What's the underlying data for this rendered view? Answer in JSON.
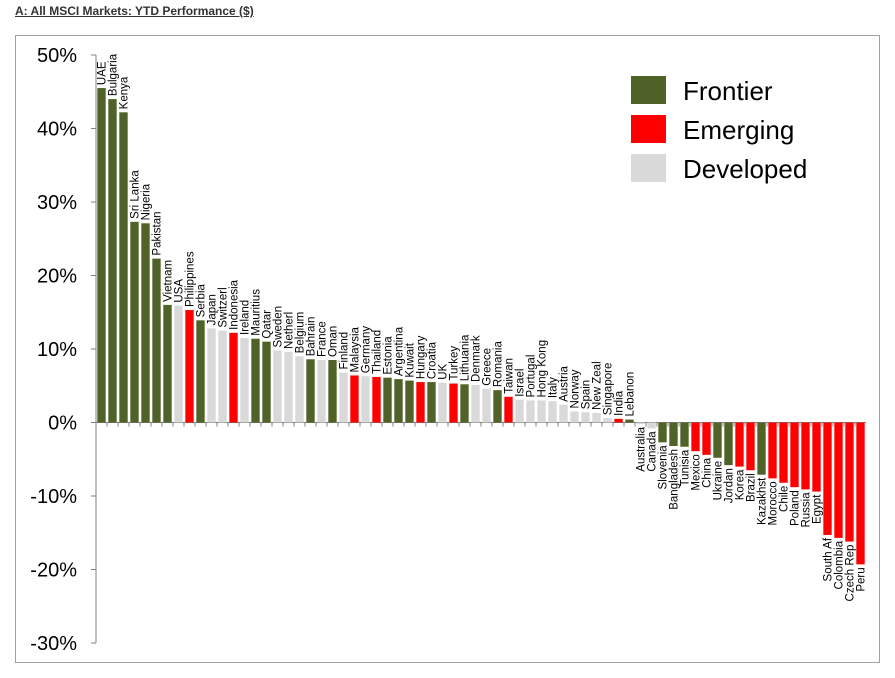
{
  "panel_title": "A: All MSCI Markets: YTD Performance ($)",
  "chart_data": {
    "type": "bar",
    "title": "",
    "xlabel": "",
    "ylabel": "",
    "ylim": [
      -30,
      50
    ],
    "yticks": [
      50,
      40,
      30,
      20,
      10,
      0,
      -10,
      -20,
      -30
    ],
    "ytick_labels": [
      "50%",
      "40%",
      "30%",
      "20%",
      "10%",
      "0%",
      "-10%",
      "-20%",
      "-30%"
    ],
    "legend": {
      "position": "top-right",
      "entries": [
        {
          "name": "Frontier",
          "color": "#4f6228"
        },
        {
          "name": "Emerging",
          "color": "#ff0000"
        },
        {
          "name": "Developed",
          "color": "#d9d9d9"
        }
      ]
    },
    "categories": [
      "UAE",
      "Bulgaria",
      "Kenya",
      "Sri Lanka",
      "Nigeria",
      "Pakistan",
      "Vietnam",
      "USA",
      "Philippines",
      "Serbia",
      "Japan",
      "Switzerl",
      "Indonesia",
      "Ireland",
      "Mauritius",
      "Qatar",
      "Sweden",
      "Netherl",
      "Belgium",
      "Bahrain",
      "France",
      "Oman",
      "Finland",
      "Malaysia",
      "Germany",
      "Thailand",
      "Estonia",
      "Argentina",
      "Kuwait",
      "Hungary",
      "Croatia",
      "UK",
      "Turkey",
      "Lithuania",
      "Denmark",
      "Greece",
      "Romania",
      "Taiwan",
      "Israel",
      "Portugal",
      "Hong Kong",
      "Italy",
      "Austria",
      "Norway",
      "Spain",
      "New Zeal",
      "Singapore",
      "India",
      "Lebanon",
      "Australia",
      "Canada",
      "Slovenia",
      "Bangladesh",
      "Tunisia",
      "Mexico",
      "China",
      "Ukraine",
      "Jordan",
      "Korea",
      "Brazil",
      "Kazakhst",
      "Morocco",
      "Chile",
      "Poland",
      "Russia",
      "Egypt",
      "South Af",
      "Colombia",
      "Czech Rep",
      "Peru"
    ],
    "values": [
      45.5,
      44,
      42.2,
      27.3,
      27.1,
      22.3,
      16,
      15.9,
      15.3,
      13.9,
      12.8,
      12.5,
      12.2,
      11.5,
      11.4,
      11,
      9.8,
      9.6,
      9,
      8.6,
      8.5,
      8.5,
      6.8,
      6.4,
      6.3,
      6.2,
      6.1,
      5.9,
      5.7,
      5.5,
      5.5,
      5.4,
      5.3,
      5.2,
      5.1,
      4.6,
      4.4,
      3.5,
      3.1,
      3,
      3,
      2.9,
      2.4,
      1.5,
      1.4,
      1.3,
      0.6,
      0.5,
      0.4,
      -0.2,
      -0.8,
      -2.7,
      -3.2,
      -3.3,
      -3.9,
      -4.4,
      -4.8,
      -5.8,
      -6,
      -6.5,
      -7.1,
      -7.6,
      -8.2,
      -8.8,
      -9.1,
      -9.4,
      -15.3,
      -15.7,
      -16.2,
      -19.3
    ],
    "groups": [
      "Frontier",
      "Frontier",
      "Frontier",
      "Frontier",
      "Frontier",
      "Frontier",
      "Frontier",
      "Developed",
      "Emerging",
      "Frontier",
      "Developed",
      "Developed",
      "Emerging",
      "Developed",
      "Frontier",
      "Frontier",
      "Developed",
      "Developed",
      "Developed",
      "Frontier",
      "Developed",
      "Frontier",
      "Developed",
      "Emerging",
      "Developed",
      "Emerging",
      "Frontier",
      "Frontier",
      "Frontier",
      "Emerging",
      "Frontier",
      "Developed",
      "Emerging",
      "Frontier",
      "Developed",
      "Developed",
      "Frontier",
      "Emerging",
      "Developed",
      "Developed",
      "Developed",
      "Developed",
      "Developed",
      "Developed",
      "Developed",
      "Developed",
      "Developed",
      "Emerging",
      "Frontier",
      "Developed",
      "Developed",
      "Frontier",
      "Frontier",
      "Frontier",
      "Emerging",
      "Emerging",
      "Frontier",
      "Frontier",
      "Emerging",
      "Emerging",
      "Frontier",
      "Emerging",
      "Emerging",
      "Emerging",
      "Emerging",
      "Emerging",
      "Emerging",
      "Emerging",
      "Emerging",
      "Emerging"
    ],
    "grid": false
  }
}
